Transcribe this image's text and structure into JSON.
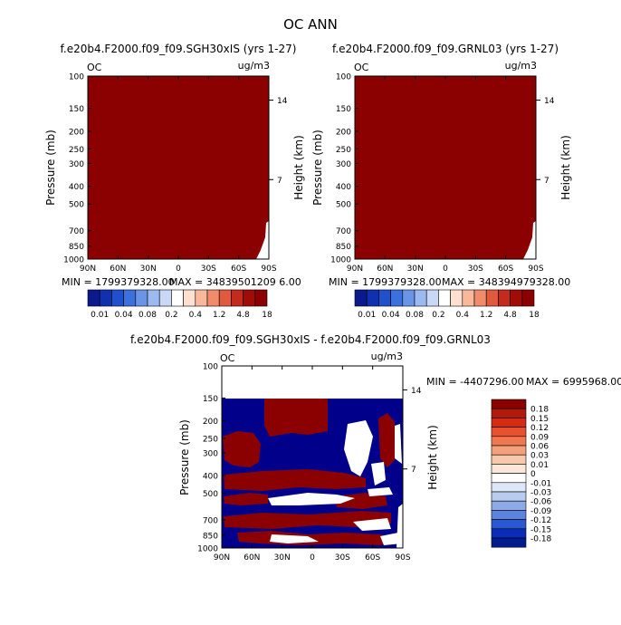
{
  "figure_title": "OC ANN",
  "chart_data": [
    {
      "type": "heatmap",
      "title": "f.e20b4.F2000.f09_f09.SGH30xIS (yrs 1-27)",
      "variable_label": "OC",
      "units_label": "ug/m3",
      "xlabel": "",
      "ylabel": "Pressure (mb)",
      "y2label": "Height (km)",
      "x_ticks": [
        "90N",
        "60N",
        "30N",
        "0",
        "30S",
        "60S",
        "90S"
      ],
      "y_ticks": [
        100,
        150,
        200,
        250,
        300,
        400,
        500,
        700,
        850,
        1000
      ],
      "y_scale": "log",
      "y_range": [
        100,
        1000
      ],
      "y2_ticks": [
        14,
        7
      ],
      "min_label": "MIN = 1799379328.00",
      "max_label": "MAX = 34839501209 6.00",
      "dominant_fill": "#8b0000",
      "colorbar_levels": [
        "0.01",
        "0.04",
        "0.08",
        "0.2",
        "0.4",
        "1.2",
        "4.8",
        "18"
      ]
    },
    {
      "type": "heatmap",
      "title": "f.e20b4.F2000.f09_f09.GRNL03 (yrs 1-27)",
      "variable_label": "OC",
      "units_label": "ug/m3",
      "xlabel": "",
      "ylabel": "Pressure (mb)",
      "y2label": "Height (km)",
      "x_ticks": [
        "90N",
        "60N",
        "30N",
        "0",
        "30S",
        "60S",
        "90S"
      ],
      "y_ticks": [
        100,
        150,
        200,
        250,
        300,
        400,
        500,
        700,
        850,
        1000
      ],
      "y_scale": "log",
      "y_range": [
        100,
        1000
      ],
      "y2_ticks": [
        14,
        7
      ],
      "min_label": "MIN = 1799379328.00",
      "max_label": "MAX = 348394979328.00",
      "dominant_fill": "#8b0000",
      "colorbar_levels": [
        "0.01",
        "0.04",
        "0.08",
        "0.2",
        "0.4",
        "1.2",
        "4.8",
        "18"
      ]
    },
    {
      "type": "heatmap",
      "title": "f.e20b4.F2000.f09_f09.SGH30xIS - f.e20b4.F2000.f09_f09.GRNL03",
      "variable_label": "OC",
      "units_label": "ug/m3",
      "xlabel": "",
      "ylabel": "Pressure (mb)",
      "y2label": "Height (km)",
      "x_ticks": [
        "90N",
        "60N",
        "30N",
        "0",
        "30S",
        "60S",
        "90S"
      ],
      "y_ticks": [
        100,
        150,
        200,
        250,
        300,
        400,
        500,
        700,
        850,
        1000
      ],
      "y_scale": "log",
      "y_range": [
        100,
        1000
      ],
      "y2_ticks": [
        14,
        7
      ],
      "min_label": "MIN = -4407296.00",
      "max_label": "MAX = 6995968.00",
      "colorbar_levels": [
        "0.18",
        "0.15",
        "0.12",
        "0.09",
        "0.06",
        "0.03",
        "0.01",
        "0",
        "-0.01",
        "-0.03",
        "-0.06",
        "-0.09",
        "-0.12",
        "-0.15",
        "-0.18"
      ],
      "colorbar_colors": [
        "#8b0000",
        "#b01a0a",
        "#d42c14",
        "#e8502e",
        "#f07850",
        "#f4a07c",
        "#f8c8ac",
        "#fbe6d8",
        "#ffffff",
        "#dce8f8",
        "#b8ccf0",
        "#8caae6",
        "#5c84dc",
        "#2a58d0",
        "#0a2cb8",
        "#001c8c"
      ]
    }
  ]
}
